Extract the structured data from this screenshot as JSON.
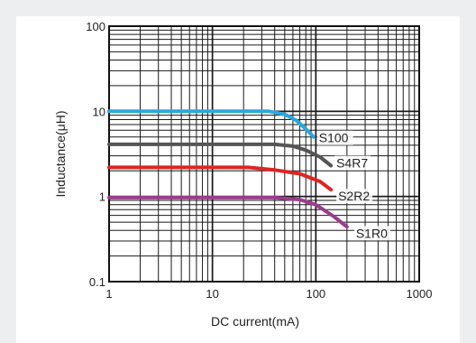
{
  "chart_data": {
    "type": "line",
    "title": "",
    "xlabel": "DC current(mA)",
    "ylabel": "Inductance(μH)",
    "xscale": "log",
    "yscale": "log",
    "xlim": [
      1,
      1000
    ],
    "ylim": [
      0.1,
      100
    ],
    "grid": true,
    "x_tick_labels": [
      "1",
      "10",
      "100",
      "1000"
    ],
    "y_tick_labels": [
      "0.1",
      "1",
      "10",
      "100"
    ],
    "series": [
      {
        "name": "S100",
        "color": "#2aa8dc",
        "x": [
          1,
          10,
          35,
          50,
          65,
          80,
          95
        ],
        "y": [
          10,
          10,
          10,
          9.2,
          7.8,
          6.2,
          5.0
        ]
      },
      {
        "name": "S4R7",
        "color": "#555555",
        "x": [
          1,
          10,
          40,
          60,
          80,
          110,
          140
        ],
        "y": [
          4.1,
          4.1,
          4.1,
          3.9,
          3.5,
          2.9,
          2.3
        ]
      },
      {
        "name": "S2R2",
        "color": "#e02424",
        "x": [
          1,
          10,
          22,
          40,
          70,
          110,
          140
        ],
        "y": [
          2.2,
          2.2,
          2.2,
          2.05,
          1.85,
          1.5,
          1.2
        ]
      },
      {
        "name": "S1R0",
        "color": "#9a3d8c",
        "x": [
          1,
          10,
          40,
          70,
          100,
          150,
          200
        ],
        "y": [
          0.97,
          0.97,
          0.97,
          0.92,
          0.8,
          0.58,
          0.44
        ]
      }
    ]
  }
}
